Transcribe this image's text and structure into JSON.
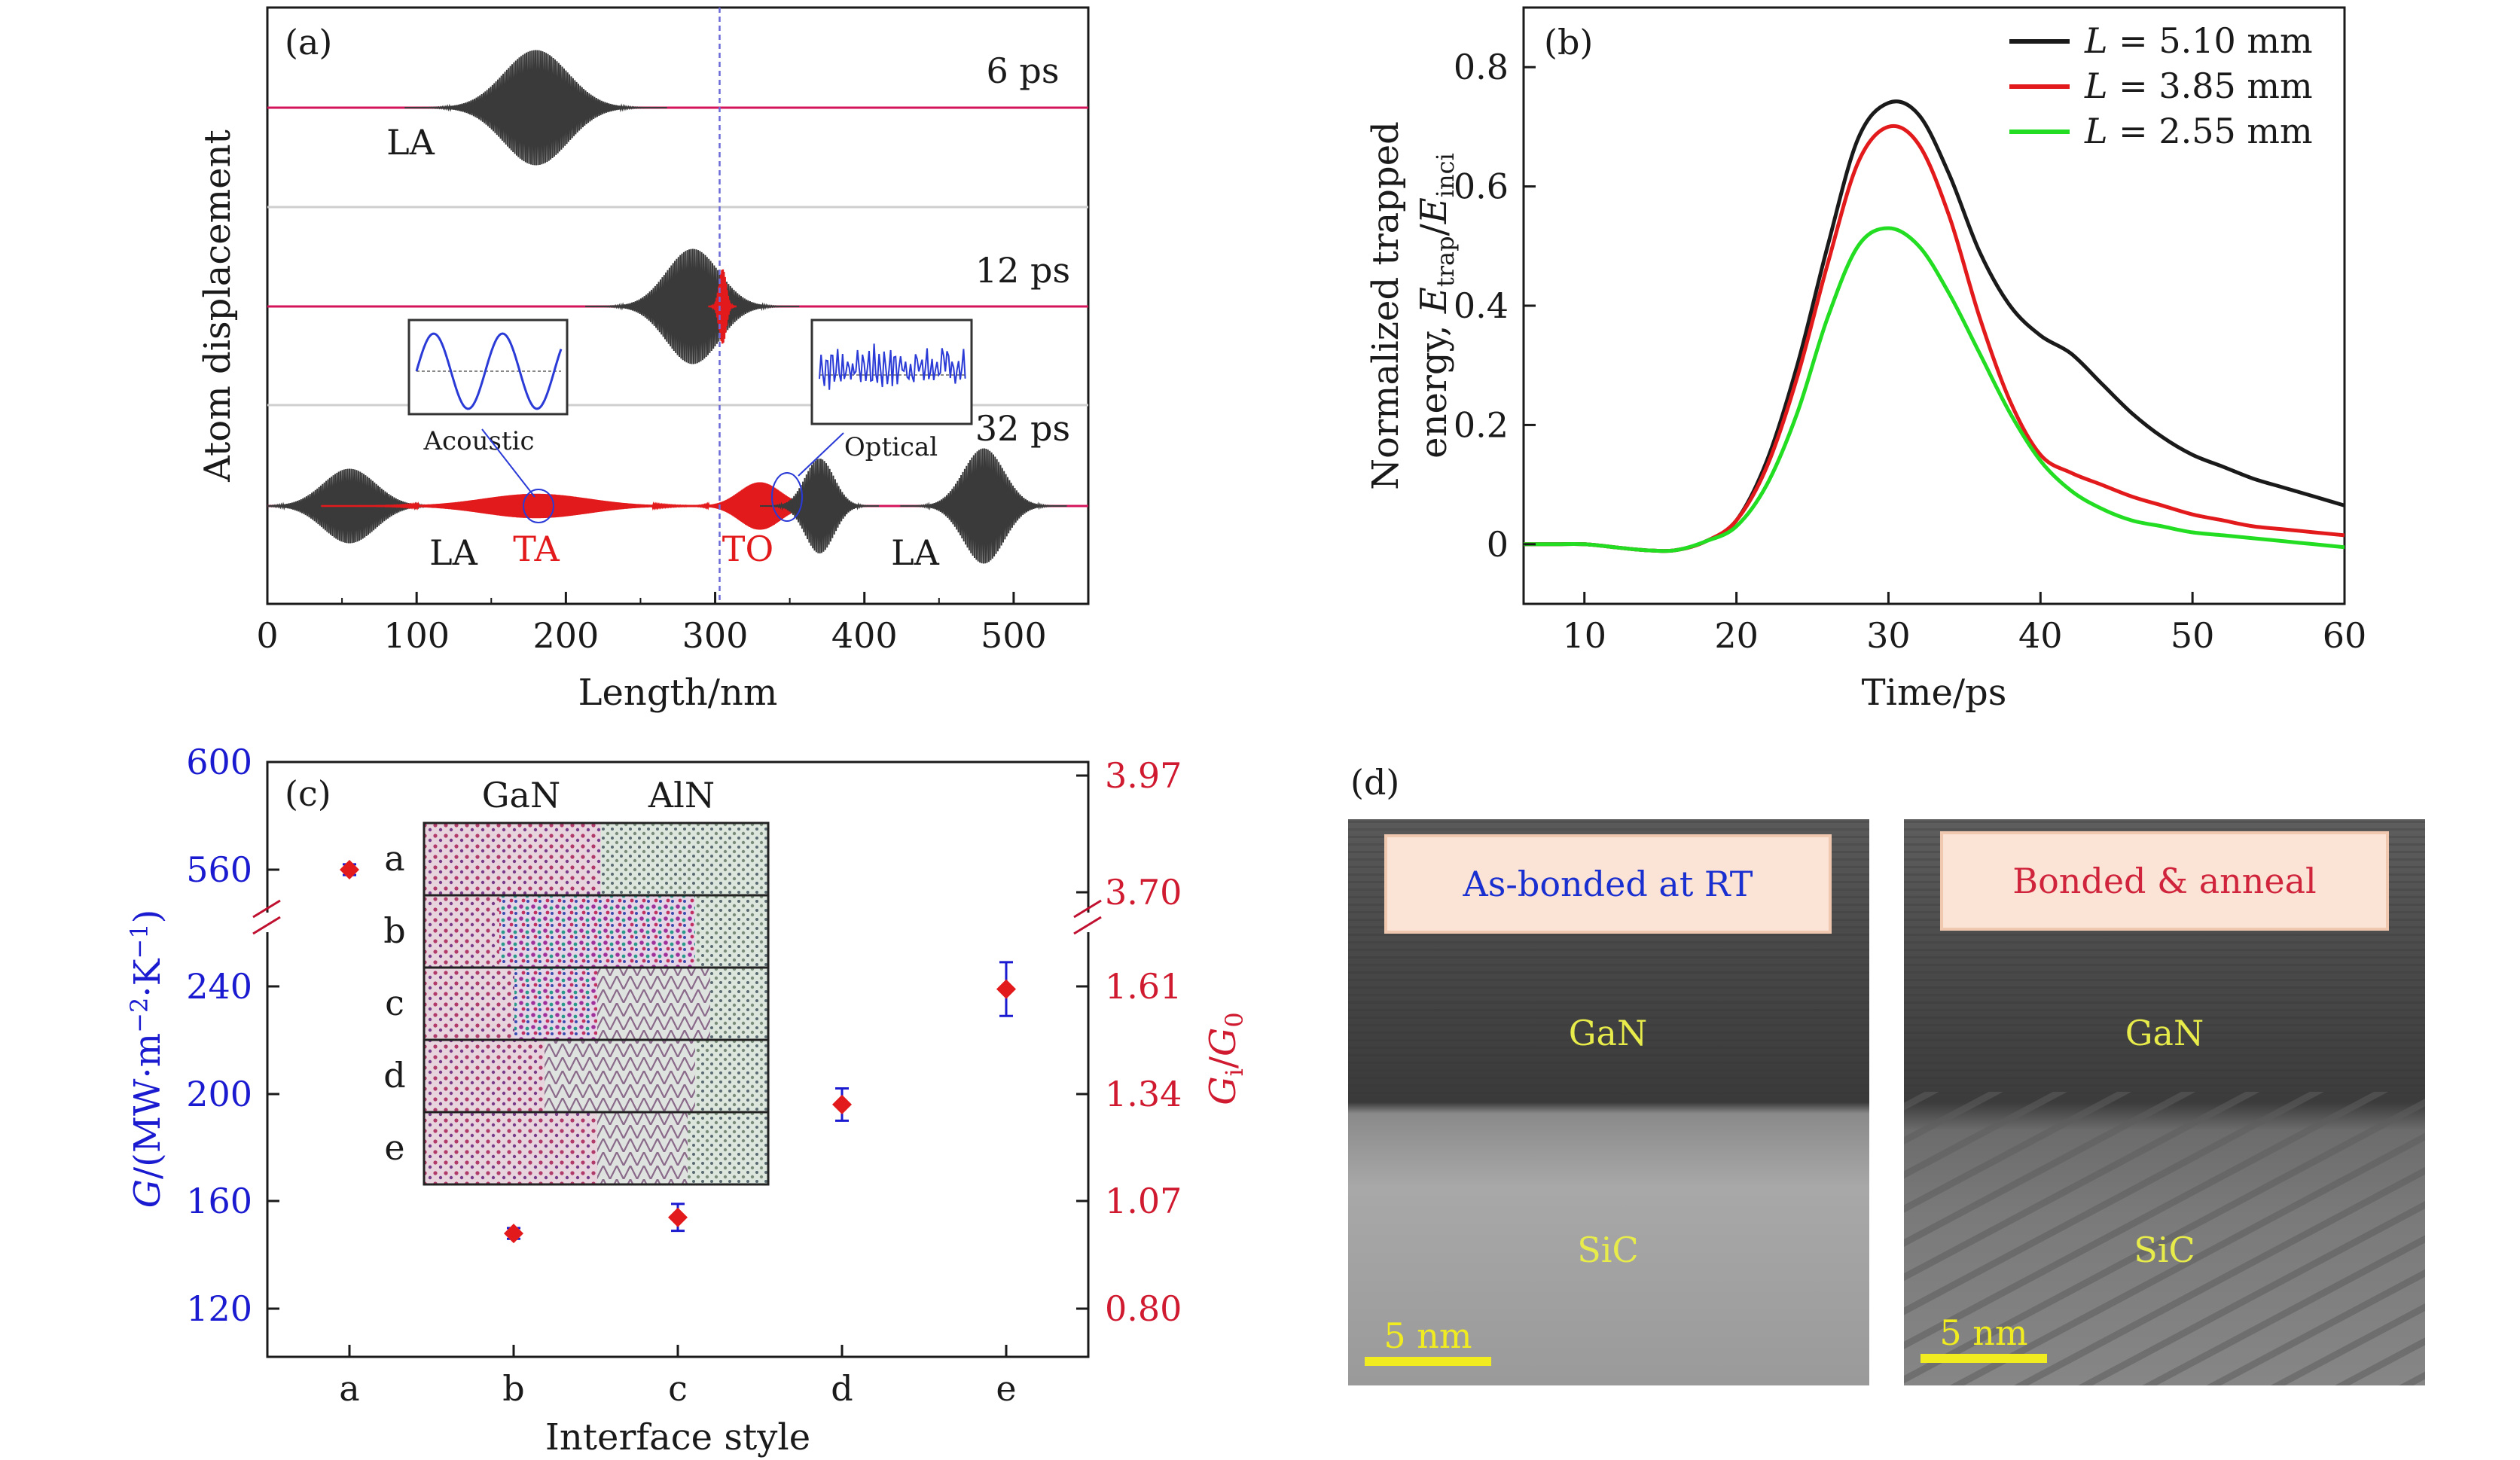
{
  "chart_data": [
    {
      "panel": "(a)",
      "type": "line",
      "xlabel": "Length/nm",
      "ylabel": "Atom displacement",
      "xlim": [
        0,
        550
      ],
      "xticks": [
        0,
        100,
        200,
        300,
        400,
        500
      ],
      "marker_x": 303,
      "series": [
        {
          "name": "6 ps",
          "label": "6 ps",
          "packets": [
            {
              "center": 180,
              "width": 55,
              "amp": 0.85,
              "mode": "LA",
              "color": "#3a3a3a"
            }
          ]
        },
        {
          "name": "12 ps",
          "label": "12 ps",
          "packets": [
            {
              "center": 285,
              "width": 45,
              "amp": 0.85,
              "mode": "LA",
              "color": "#3a3a3a"
            },
            {
              "center": 305,
              "width": 6,
              "amp": 0.55,
              "mode": "TO",
              "color": "#e31a1c"
            }
          ]
        },
        {
          "name": "32 ps",
          "label": "32 ps",
          "packets": [
            {
              "center": 55,
              "width": 45,
              "amp": 0.55,
              "mode": "LA",
              "color": "#3a3a3a"
            },
            {
              "center": 180,
              "width": 90,
              "amp": 0.18,
              "mode": "TA",
              "color": "#e31a1c"
            },
            {
              "center": 330,
              "width": 35,
              "amp": 0.35,
              "mode": "TO",
              "color": "#e31a1c"
            },
            {
              "center": 370,
              "width": 25,
              "amp": 0.7,
              "mode": "LA",
              "color": "#3a3a3a"
            },
            {
              "center": 480,
              "width": 35,
              "amp": 0.85,
              "mode": "LA",
              "color": "#3a3a3a"
            }
          ]
        }
      ],
      "annotations": {
        "la_6ps": "LA",
        "la_left": "LA",
        "ta": "TA",
        "to": "TO",
        "la_right": "LA",
        "inset_acoustic": "Acoustic",
        "inset_optical": "Optical"
      }
    },
    {
      "panel": "(b)",
      "type": "line",
      "xlabel": "Time/ps",
      "ylabel_line1": "Normalized trapped",
      "ylabel_line2_prefix": "energy, ",
      "ylabel_num": "E",
      "ylabel_num_sub": "trap",
      "ylabel_slash": "/",
      "ylabel_den": "E",
      "ylabel_den_sub": "inci",
      "xlim": [
        6,
        60
      ],
      "ylim": [
        -0.1,
        0.9
      ],
      "xticks": [
        10,
        20,
        30,
        40,
        50,
        60
      ],
      "yticks": [
        0,
        0.2,
        0.4,
        0.6,
        0.8
      ],
      "x": [
        6,
        8,
        10,
        12,
        14,
        16,
        18,
        20,
        22,
        24,
        26,
        28,
        30,
        32,
        34,
        36,
        38,
        40,
        42,
        44,
        46,
        48,
        50,
        52,
        54,
        56,
        58,
        60
      ],
      "series": [
        {
          "name": "L = 5.10 mm",
          "symbol": "L",
          "eq": " = 5.10 mm",
          "color": "#1a1a1a",
          "values": [
            0.0,
            0.0,
            0.0,
            -0.005,
            -0.01,
            -0.01,
            0.005,
            0.04,
            0.14,
            0.3,
            0.5,
            0.68,
            0.74,
            0.72,
            0.62,
            0.49,
            0.4,
            0.35,
            0.32,
            0.27,
            0.22,
            0.18,
            0.15,
            0.13,
            0.11,
            0.095,
            0.08,
            0.065
          ]
        },
        {
          "name": "L = 3.85 mm",
          "symbol": "L",
          "eq": " = 3.85 mm",
          "color": "#e31a1c",
          "values": [
            0.0,
            0.0,
            0.0,
            -0.005,
            -0.01,
            -0.01,
            0.005,
            0.04,
            0.13,
            0.28,
            0.47,
            0.64,
            0.7,
            0.67,
            0.55,
            0.38,
            0.24,
            0.15,
            0.12,
            0.1,
            0.08,
            0.065,
            0.05,
            0.04,
            0.03,
            0.025,
            0.02,
            0.015
          ]
        },
        {
          "name": "L = 2.55 mm",
          "symbol": "L",
          "eq": " = 2.55 mm",
          "color": "#22dd22",
          "values": [
            0.0,
            0.0,
            0.0,
            -0.005,
            -0.01,
            -0.01,
            0.005,
            0.03,
            0.1,
            0.22,
            0.38,
            0.5,
            0.53,
            0.5,
            0.42,
            0.32,
            0.22,
            0.14,
            0.09,
            0.06,
            0.04,
            0.03,
            0.02,
            0.015,
            0.01,
            0.005,
            0.0,
            -0.005
          ]
        }
      ]
    },
    {
      "panel": "(c)",
      "type": "scatter",
      "xlabel": "Interface style",
      "ylabel_left_sym": "G",
      "ylabel_left_unit": "/(MW·m",
      "ylabel_left_exp1": "−2",
      "ylabel_left_mid": "·K",
      "ylabel_left_exp2": "−1",
      "ylabel_left_close": ")",
      "ylabel_right_num": "G",
      "ylabel_right_num_sub": "i",
      "ylabel_right_slash": "/",
      "ylabel_right_den": "G",
      "ylabel_right_den_sub": "0",
      "categories": [
        "a",
        "b",
        "c",
        "d",
        "e"
      ],
      "values": [
        560,
        148,
        154,
        196,
        239
      ],
      "errors": [
        2,
        2,
        5,
        6,
        10
      ],
      "yticks_left": [
        "600",
        "560",
        "240",
        "200",
        "160",
        "120"
      ],
      "yticks_right": [
        "3.97",
        "3.70",
        "1.61",
        "1.34",
        "1.07",
        "0.80"
      ],
      "axis_break": true,
      "inset_headers": [
        "GaN",
        "AlN"
      ],
      "inset_rows": [
        "a",
        "b",
        "c",
        "d",
        "e"
      ]
    }
  ],
  "panel_d": {
    "label": "(d)",
    "images": [
      {
        "title": "As-bonded at RT",
        "title_color": "#1a2fd0",
        "layer_top": "GaN",
        "layer_bottom": "SiC",
        "scale": "5 nm"
      },
      {
        "title": "Bonded & anneal",
        "title_color": "#d0243c",
        "layer_top": "GaN",
        "layer_bottom": "SiC",
        "scale": "5 nm"
      }
    ]
  }
}
